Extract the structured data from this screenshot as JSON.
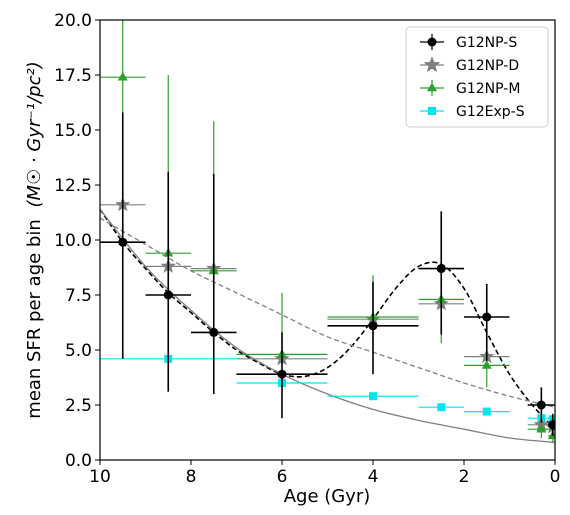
{
  "chart_data": {
    "type": "scatter",
    "xlabel": "Age (Gyr)",
    "ylabel": "mean SFR per age bin",
    "ylabel_units": "(M☉ · Gyr⁻¹/pc²)",
    "xlim": [
      10,
      0
    ],
    "ylim": [
      0,
      20
    ],
    "x_ticks": [
      10,
      8,
      6,
      4,
      2,
      0
    ],
    "y_ticks": [
      0.0,
      2.5,
      5.0,
      7.5,
      10.0,
      12.5,
      15.0,
      17.5,
      20.0
    ],
    "x_tick_labels": [
      "10",
      "8",
      "6",
      "4",
      "2",
      "0"
    ],
    "y_tick_labels": [
      "0.0",
      "2.5",
      "5.0",
      "7.5",
      "10.0",
      "12.5",
      "15.0",
      "17.5",
      "20.0"
    ],
    "grid": false,
    "legend_position": "top-right",
    "series": [
      {
        "name": "G12NP-S",
        "color": "#000000",
        "marker": "circle",
        "points": [
          {
            "x": 9.5,
            "y": 9.9,
            "xerr": [
              0.5,
              0.5
            ],
            "yerr": [
              5.3,
              5.9
            ]
          },
          {
            "x": 8.5,
            "y": 7.5,
            "xerr": [
              0.5,
              0.5
            ],
            "yerr": [
              4.4,
              5.6
            ]
          },
          {
            "x": 7.5,
            "y": 5.8,
            "xerr": [
              0.5,
              0.5
            ],
            "yerr": [
              2.8,
              7.2
            ]
          },
          {
            "x": 6.0,
            "y": 3.9,
            "xerr": [
              1.0,
              1.0
            ],
            "yerr": [
              2.0,
              1.9
            ]
          },
          {
            "x": 4.0,
            "y": 6.1,
            "xerr": [
              1.0,
              1.0
            ],
            "yerr": [
              2.2,
              2.0
            ]
          },
          {
            "x": 2.5,
            "y": 8.7,
            "xerr": [
              0.5,
              0.5
            ],
            "yerr": [
              3.0,
              2.6
            ]
          },
          {
            "x": 1.5,
            "y": 6.5,
            "xerr": [
              0.5,
              0.5
            ],
            "yerr": [
              2.0,
              1.5
            ]
          },
          {
            "x": 0.3,
            "y": 2.5,
            "xerr": [
              0.3,
              0.3
            ],
            "yerr": [
              0.8,
              0.8
            ]
          },
          {
            "x": 0.05,
            "y": 1.6,
            "xerr": [
              0.1,
              0.1
            ],
            "yerr": [
              0.5,
              0.5
            ]
          }
        ]
      },
      {
        "name": "G12NP-D",
        "color": "#808080",
        "marker": "star",
        "points": [
          {
            "x": 9.5,
            "y": 11.6,
            "xerr": [
              0.5,
              0.5
            ],
            "yerr": [
              0,
              0
            ]
          },
          {
            "x": 8.5,
            "y": 8.8,
            "xerr": [
              0.5,
              0.5
            ],
            "yerr": [
              0,
              0
            ]
          },
          {
            "x": 7.5,
            "y": 8.7,
            "xerr": [
              0.5,
              0.5
            ],
            "yerr": [
              0,
              0
            ]
          },
          {
            "x": 6.0,
            "y": 4.6,
            "xerr": [
              1.0,
              1.0
            ],
            "yerr": [
              0,
              0
            ]
          },
          {
            "x": 4.0,
            "y": 6.4,
            "xerr": [
              1.0,
              1.0
            ],
            "yerr": [
              0,
              0
            ]
          },
          {
            "x": 2.5,
            "y": 7.1,
            "xerr": [
              0.5,
              0.5
            ],
            "yerr": [
              0,
              0
            ]
          },
          {
            "x": 1.5,
            "y": 4.7,
            "xerr": [
              0.5,
              0.5
            ],
            "yerr": [
              0,
              0
            ]
          },
          {
            "x": 0.3,
            "y": 1.6,
            "xerr": [
              0.3,
              0.3
            ],
            "yerr": [
              0,
              0
            ]
          },
          {
            "x": 0.05,
            "y": 1.5,
            "xerr": [
              0.1,
              0.1
            ],
            "yerr": [
              0,
              0
            ]
          }
        ]
      },
      {
        "name": "G12NP-M",
        "color": "#2ca02c",
        "marker": "triangle",
        "points": [
          {
            "x": 9.5,
            "y": 17.4,
            "xerr": [
              0.5,
              0.5
            ],
            "yerr": [
              5.5,
              2.6
            ]
          },
          {
            "x": 8.5,
            "y": 9.4,
            "xerr": [
              0.5,
              0.5
            ],
            "yerr": [
              2.0,
              8.1
            ]
          },
          {
            "x": 7.5,
            "y": 8.6,
            "xerr": [
              0.5,
              0.5
            ],
            "yerr": [
              2.0,
              6.8
            ]
          },
          {
            "x": 6.0,
            "y": 4.8,
            "xerr": [
              1.0,
              1.0
            ],
            "yerr": [
              1.5,
              2.8
            ]
          },
          {
            "x": 4.0,
            "y": 6.5,
            "xerr": [
              1.0,
              1.0
            ],
            "yerr": [
              1.5,
              1.9
            ]
          },
          {
            "x": 2.5,
            "y": 7.3,
            "xerr": [
              0.5,
              0.5
            ],
            "yerr": [
              2.0,
              2.4
            ]
          },
          {
            "x": 1.5,
            "y": 4.3,
            "xerr": [
              0.5,
              0.5
            ],
            "yerr": [
              1.0,
              1.0
            ]
          },
          {
            "x": 0.3,
            "y": 1.4,
            "xerr": [
              0.3,
              0.3
            ],
            "yerr": [
              0.4,
              0.4
            ]
          },
          {
            "x": 0.05,
            "y": 1.1,
            "xerr": [
              0.1,
              0.1
            ],
            "yerr": [
              0.3,
              0.3
            ]
          }
        ]
      },
      {
        "name": "G12Exp-S",
        "color": "#00e5ee",
        "marker": "square",
        "points": [
          {
            "x": 8.5,
            "y": 4.6,
            "xerr": [
              1.5,
              1.5
            ],
            "yerr": [
              0,
              0
            ]
          },
          {
            "x": 6.0,
            "y": 3.5,
            "xerr": [
              1.0,
              1.0
            ],
            "yerr": [
              0,
              0
            ]
          },
          {
            "x": 4.0,
            "y": 2.9,
            "xerr": [
              1.0,
              1.0
            ],
            "yerr": [
              0,
              0
            ]
          },
          {
            "x": 2.5,
            "y": 2.4,
            "xerr": [
              0.5,
              0.5
            ],
            "yerr": [
              0,
              0
            ]
          },
          {
            "x": 1.5,
            "y": 2.2,
            "xerr": [
              0.5,
              0.5
            ],
            "yerr": [
              0,
              0
            ]
          },
          {
            "x": 0.3,
            "y": 1.9,
            "xerr": [
              0.3,
              0.3
            ],
            "yerr": [
              0,
              0
            ]
          },
          {
            "x": 0.05,
            "y": 1.85,
            "xerr": [
              0.1,
              0.1
            ],
            "yerr": [
              0,
              0
            ]
          }
        ]
      }
    ],
    "curves": [
      {
        "style": "dashed",
        "color": "#000000",
        "x": [
          10,
          9.5,
          9,
          8.5,
          8,
          7.5,
          7,
          6.5,
          6,
          5.5,
          5,
          4.5,
          4,
          3.5,
          3,
          2.5,
          2,
          1.5,
          1,
          0.5,
          0
        ],
        "y": [
          11.4,
          9.9,
          8.7,
          7.6,
          6.7,
          5.8,
          5.0,
          4.4,
          3.9,
          3.8,
          4.2,
          5.1,
          6.4,
          7.8,
          8.8,
          8.9,
          7.8,
          5.8,
          3.9,
          2.5,
          1.4
        ]
      },
      {
        "style": "dashed",
        "color": "#808080",
        "x": [
          10,
          9,
          8,
          7,
          6,
          5,
          4,
          3,
          2,
          1,
          0
        ],
        "y": [
          11.0,
          9.8,
          8.6,
          7.6,
          6.6,
          5.6,
          4.9,
          4.2,
          3.5,
          2.9,
          2.4
        ]
      },
      {
        "style": "solid",
        "color": "#808080",
        "x": [
          10,
          9,
          8,
          7,
          6,
          5,
          4,
          3,
          2,
          1,
          0
        ],
        "y": [
          11.4,
          8.8,
          6.8,
          5.1,
          3.9,
          3.0,
          2.3,
          1.8,
          1.4,
          1.0,
          0.8
        ]
      }
    ]
  }
}
